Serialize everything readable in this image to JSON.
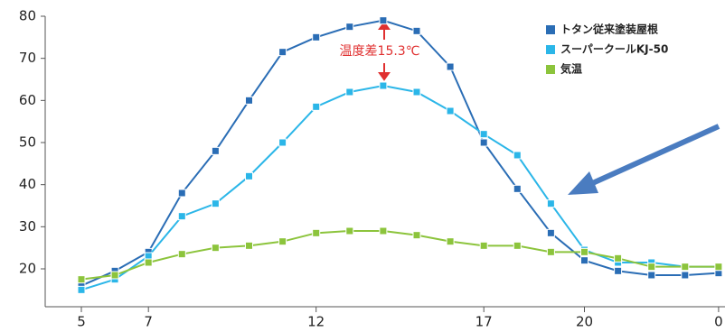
{
  "chart_data": {
    "type": "line",
    "annotation": "温度差15.3℃",
    "categories": [
      "5",
      null,
      "7",
      null,
      null,
      null,
      null,
      "12",
      null,
      null,
      null,
      null,
      "17",
      null,
      null,
      "20",
      null,
      null,
      null,
      "0"
    ],
    "ylim": [
      11,
      80
    ],
    "yticks": [
      20,
      30,
      40,
      50,
      60,
      70,
      80
    ],
    "grid": false,
    "legend": "top-right",
    "series": [
      {
        "name": "トタン従来塗装屋根",
        "color": "#2a6db5",
        "values": [
          16,
          19.5,
          24,
          38,
          48,
          60,
          71.5,
          75,
          77.5,
          79,
          76.5,
          68,
          50,
          39,
          28.5,
          22,
          19.5,
          18.5,
          18.5,
          19
        ]
      },
      {
        "name": "スーパークールKJ-50",
        "color": "#2bb6e8",
        "values": [
          15,
          17.5,
          23,
          32.5,
          35.5,
          42,
          50,
          58.5,
          62,
          63.5,
          62,
          57.5,
          52,
          47,
          35.5,
          24.5,
          21.5,
          21.5,
          20.5,
          20.5
        ]
      },
      {
        "name": "気温",
        "color": "#8cc43c",
        "values": [
          17.5,
          18.5,
          21.5,
          23.5,
          25,
          25.5,
          26.5,
          28.5,
          29,
          29,
          28,
          26.5,
          25.5,
          25.5,
          24,
          24,
          22.5,
          20.5,
          20.5,
          20.5
        ]
      }
    ]
  }
}
